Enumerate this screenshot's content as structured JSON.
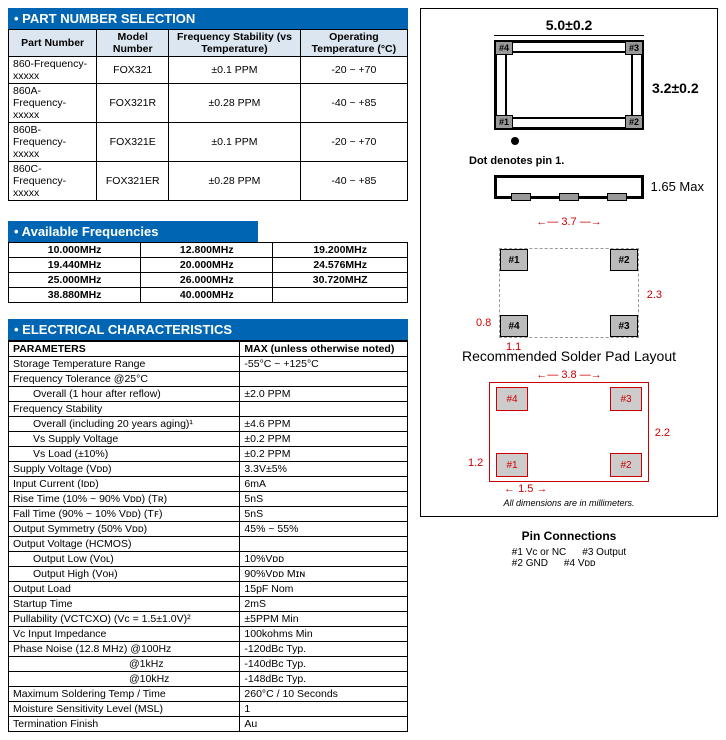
{
  "partNumberSelection": {
    "title": "• PART NUMBER SELECTION",
    "headers": [
      "Part Number",
      "Model Number",
      "Frequency Stability (vs Temperature)",
      "Operating Temperature (°C)"
    ],
    "rows": [
      [
        "860-Frequency-xxxxx",
        "FOX321",
        "±0.1  PPM",
        "-20 ~ +70"
      ],
      [
        "860A-Frequency-xxxxx",
        "FOX321R",
        "±0.28 PPM",
        "-40 ~ +85"
      ],
      [
        "860B-Frequency-xxxxx",
        "FOX321E",
        "±0.1  PPM",
        "-20 ~ +70"
      ],
      [
        "860C-Frequency-xxxxx",
        "FOX321ER",
        "±0.28 PPM",
        "-40 ~ +85"
      ]
    ]
  },
  "availableFrequencies": {
    "title": "• Available Frequencies",
    "rows": [
      [
        "10.000MHz",
        "12.800MHz",
        "19.200MHz"
      ],
      [
        "19.440MHz",
        "20.000MHz",
        "24.576MHz"
      ],
      [
        "25.000MHz",
        "26.000MHz",
        "30.720MHZ"
      ],
      [
        "38.880MHz",
        "40.000MHz",
        ""
      ]
    ]
  },
  "electrical": {
    "title": "• ELECTRICAL CHARACTERISTICS",
    "headers": [
      "PARAMETERS",
      "MAX (unless otherwise noted)"
    ],
    "rows": [
      {
        "p": "Storage Temperature Range",
        "v": "-55°C ~ +125°C"
      },
      {
        "p": "Frequency Tolerance @25°C",
        "v": ""
      },
      {
        "p": "Overall (1 hour after reflow)",
        "v": "±2.0 PPM",
        "indent": true
      },
      {
        "p": "Frequency Stability",
        "v": ""
      },
      {
        "p": "Overall (including 20 years aging)¹",
        "v": "±4.6 PPM",
        "indent": true
      },
      {
        "p": "Vs Supply Voltage",
        "v": "±0.2 PPM",
        "indent": true
      },
      {
        "p": "Vs Load (±10%)",
        "v": "±0.2 PPM",
        "indent": true
      },
      {
        "p": "Supply Voltage (Vᴅᴅ)",
        "v": "3.3V±5%"
      },
      {
        "p": "Input Current    (Iᴅᴅ)",
        "v": "6mA"
      },
      {
        "p": "Rise Time (10% ~ 90% Vᴅᴅ) (Tʀ)",
        "v": "5nS"
      },
      {
        "p": "Fall Time (90% ~ 10% Vᴅᴅ) (Tꜰ)",
        "v": "5nS"
      },
      {
        "p": "Output Symmetry (50% Vᴅᴅ)",
        "v": "45% ~ 55%"
      },
      {
        "p": "Output Voltage (HCMOS)",
        "v": ""
      },
      {
        "p": "Output Low  (Vᴏʟ)",
        "v": "10%Vᴅᴅ",
        "indent": true
      },
      {
        "p": "Output High (Vᴏʜ)",
        "v": "90%Vᴅᴅ Mɪɴ",
        "indent": true
      },
      {
        "p": "Output Load",
        "v": "15pF Nom"
      },
      {
        "p": "Startup Time",
        "v": "2mS"
      },
      {
        "p": "Pullability (VCTCXO) (Vᴄ = 1.5±1.0V)²",
        "v": "±5PPM Min"
      },
      {
        "p": "Vᴄ Input Impedance",
        "v": "100kohms Min"
      },
      {
        "p": "Phase Noise (12.8 MHz)       @100Hz",
        "v": "-120dBc Typ."
      },
      {
        "p": "@1kHz",
        "v": "-140dBc Typ.",
        "indent2": true
      },
      {
        "p": "@10kHz",
        "v": "-148dBc Typ.",
        "indent2": true
      },
      {
        "p": "Maximum Soldering Temp / Time",
        "v": "260°C / 10 Seconds"
      },
      {
        "p": "Moisture Sensitivity Level (MSL)",
        "v": "1"
      },
      {
        "p": "Termination Finish",
        "v": "Au"
      }
    ]
  },
  "package": {
    "dimTop": "5.0±0.2",
    "dimRight": "3.2±0.2",
    "pins": {
      "p1": "#1",
      "p2": "#2",
      "p3": "#3",
      "p4": "#4"
    },
    "dotLabel": "Dot denotes pin 1.",
    "sideDim": "1.65 Max",
    "solder": {
      "title": "Recommended Solder Pad Layout",
      "dimTop": "3.7",
      "dimRight": "2.3",
      "dimLeft": "0.8",
      "dimBottom": "1.1"
    },
    "layout2": {
      "dimTop": "3.8",
      "dimRight": "2.2",
      "dimLeft": "1.2",
      "dimBottom": "1.5"
    },
    "note": "All dimensions are in millimeters."
  },
  "pinConnections": {
    "title": "Pin Connections",
    "p1": "#1 Vc or NC",
    "p2": "#2 GND",
    "p3": "#3 Output",
    "p4": "#4 Vᴅᴅ"
  }
}
